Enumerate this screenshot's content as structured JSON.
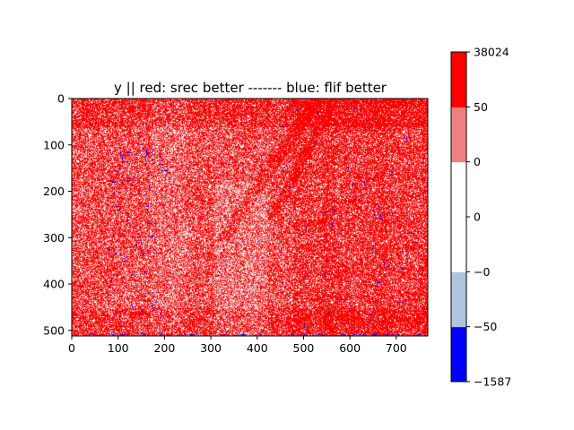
{
  "chart_data": {
    "type": "heatmap",
    "title": "y || red: srec better ------- blue: flif better",
    "xlabel": "",
    "ylabel": "",
    "image_size": {
      "width": 768,
      "height": 512
    },
    "xlim": [
      0,
      768
    ],
    "ylim": [
      512,
      0
    ],
    "x_ticks": [
      0,
      100,
      200,
      300,
      400,
      500,
      600,
      700
    ],
    "x_tick_labels": [
      "0",
      "100",
      "200",
      "300",
      "400",
      "500",
      "600",
      "700"
    ],
    "y_ticks": [
      0,
      100,
      200,
      300,
      400,
      500
    ],
    "y_tick_labels": [
      "0",
      "100",
      "200",
      "300",
      "400",
      "500"
    ],
    "colorbar": {
      "min": -1587,
      "max": 38024,
      "tick_labels": [
        "38024",
        "50",
        "0",
        "0",
        "−0",
        "−50",
        "−1587"
      ],
      "bands": [
        {
          "label": "−1587 to −50",
          "color": "#0000ff"
        },
        {
          "label": "−50 to −0",
          "color": "#b0c4de"
        },
        {
          "label": "−0 to 0",
          "color": "#ffffff"
        },
        {
          "label": "0 to 0",
          "color": "#ffffff"
        },
        {
          "label": "0 to 50",
          "color": "#f08080"
        },
        {
          "label": "50 to 38024",
          "color": "#ff0000"
        }
      ]
    },
    "colors": {
      "strong_red": "#ff0000",
      "light_red": "#f08080",
      "white": "#ffffff",
      "light_blue": "#b0c4de",
      "strong_blue": "#0000ff"
    }
  }
}
